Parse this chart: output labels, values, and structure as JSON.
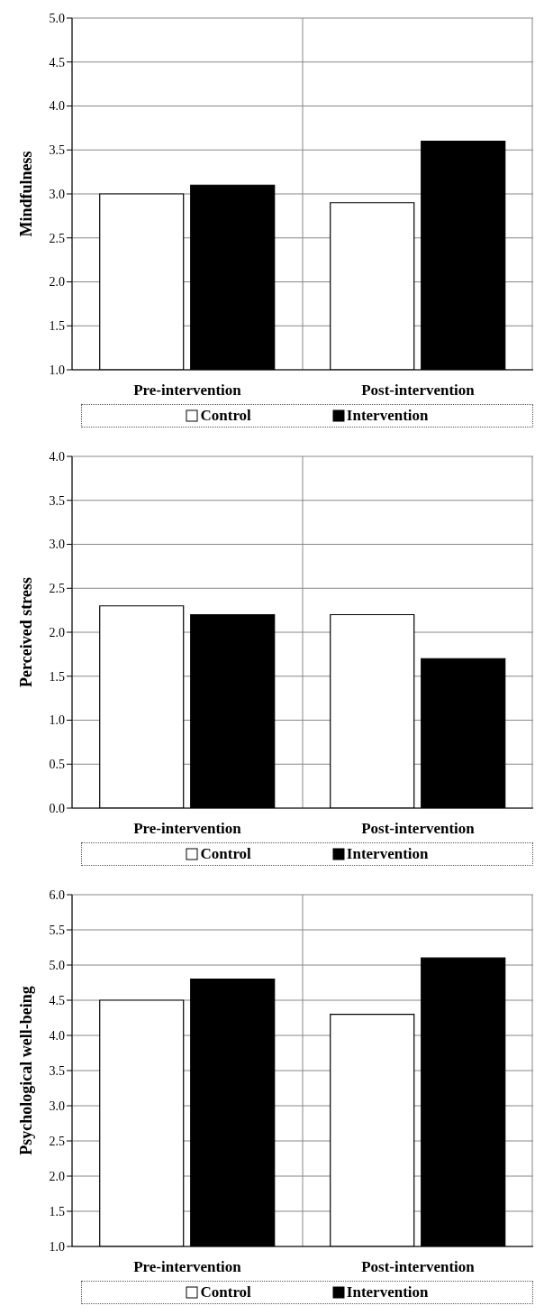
{
  "chart_data": [
    {
      "type": "bar",
      "ylabel": "Mindfulness",
      "categories": [
        "Pre-intervention",
        "Post-intervention"
      ],
      "series": [
        {
          "name": "Control",
          "color": "#ffffff",
          "values": [
            3.0,
            2.9
          ]
        },
        {
          "name": "Intervention",
          "color": "#000000",
          "values": [
            3.1,
            3.6
          ]
        }
      ],
      "ylim": [
        1,
        5
      ],
      "yticks": [
        {
          "value": 1,
          "label": "1.0"
        },
        {
          "value": 1.5,
          "label": "1.5"
        },
        {
          "value": 2,
          "label": "2.0"
        },
        {
          "value": 2.5,
          "label": "2.5"
        },
        {
          "value": 3,
          "label": "3.0"
        },
        {
          "value": 3.5,
          "label": "3.5"
        },
        {
          "value": 4,
          "label": "4.0"
        },
        {
          "value": 4.5,
          "label": "4.5"
        },
        {
          "value": 5,
          "label": "5.0"
        }
      ],
      "grid": true,
      "legend": "bottom"
    },
    {
      "type": "bar",
      "ylabel": "Perceived stress",
      "categories": [
        "Pre-intervention",
        "Post-intervention"
      ],
      "series": [
        {
          "name": "Control",
          "color": "#ffffff",
          "values": [
            2.3,
            2.2
          ]
        },
        {
          "name": "Intervention",
          "color": "#000000",
          "values": [
            2.2,
            1.7
          ]
        }
      ],
      "ylim": [
        0,
        4
      ],
      "yticks": [
        {
          "value": 0,
          "label": "0.0"
        },
        {
          "value": 0.5,
          "label": "0.5"
        },
        {
          "value": 1,
          "label": "1.0"
        },
        {
          "value": 1.5,
          "label": "1.5"
        },
        {
          "value": 2,
          "label": "2.0"
        },
        {
          "value": 2.5,
          "label": "2.5"
        },
        {
          "value": 3,
          "label": "3.0"
        },
        {
          "value": 3.5,
          "label": "3.5"
        },
        {
          "value": 4,
          "label": "4.0"
        }
      ],
      "grid": true,
      "legend": "bottom"
    },
    {
      "type": "bar",
      "ylabel": "Psychological well-being",
      "categories": [
        "Pre-intervention",
        "Post-intervention"
      ],
      "series": [
        {
          "name": "Control",
          "color": "#ffffff",
          "values": [
            4.5,
            4.3
          ]
        },
        {
          "name": "Intervention",
          "color": "#000000",
          "values": [
            4.8,
            5.1
          ]
        }
      ],
      "ylim": [
        1,
        6
      ],
      "yticks": [
        {
          "value": 1,
          "label": "1.0"
        },
        {
          "value": 1.5,
          "label": "1.5"
        },
        {
          "value": 2,
          "label": "2.0"
        },
        {
          "value": 2.5,
          "label": "2.5"
        },
        {
          "value": 3,
          "label": "3.0"
        },
        {
          "value": 3.5,
          "label": "3.5"
        },
        {
          "value": 4,
          "label": "4.0"
        },
        {
          "value": 4.5,
          "label": "4.5"
        },
        {
          "value": 5,
          "label": "5.0"
        },
        {
          "value": 5.5,
          "label": "5.5"
        },
        {
          "value": 6,
          "label": "6.0"
        }
      ],
      "grid": true,
      "legend": "bottom"
    }
  ]
}
